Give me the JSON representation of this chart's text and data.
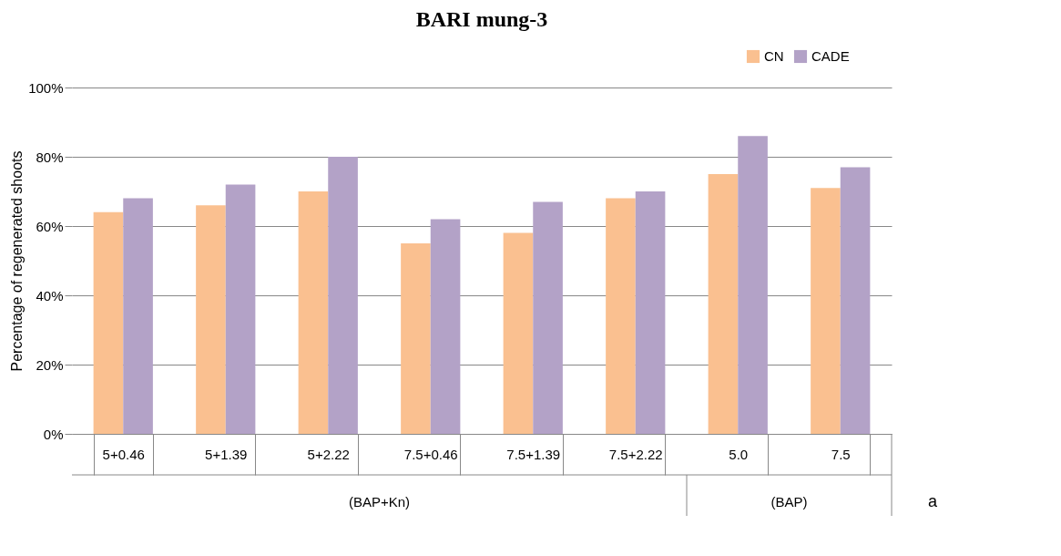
{
  "chart_data": {
    "type": "bar",
    "title": "BARI mung-3",
    "ylabel": "Percentage of regenerated shoots",
    "categories": [
      "5+0.46",
      "5+1.39",
      "5+2.22",
      "7.5+0.46",
      "7.5+1.39",
      "7.5+2.22",
      "5.0",
      "7.5"
    ],
    "series": [
      {
        "name": "CN",
        "color": "#fac090",
        "values": [
          64,
          66,
          70,
          55,
          58,
          68,
          75,
          71
        ]
      },
      {
        "name": "CADE",
        "color": "#b3a2c7",
        "values": [
          68,
          72,
          80,
          62,
          67,
          70,
          86,
          77
        ]
      }
    ],
    "ylim": [
      0,
      100
    ],
    "yticks": [
      {
        "value": 0,
        "label": "0%"
      },
      {
        "value": 20,
        "label": "20%"
      },
      {
        "value": 40,
        "label": "40%"
      },
      {
        "value": 60,
        "label": "60%"
      },
      {
        "value": 80,
        "label": "80%"
      },
      {
        "value": 100,
        "label": "100%"
      }
    ],
    "grid": "y",
    "legend": "top right",
    "annotations": [
      "(BAP+Kn)",
      "(BAP)",
      "a"
    ]
  }
}
